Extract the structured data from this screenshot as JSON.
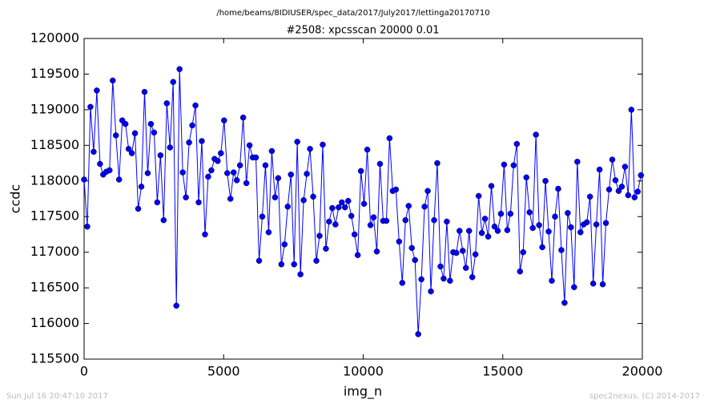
{
  "chart_data": {
    "type": "line",
    "suptitle": "/home/beams/8IDIUSER/spec_data/2017/July2017/lettinga20170710",
    "title": "#2508: xpcsscan 20000 0.01",
    "x_label": "img_n",
    "y_label": "ccdc",
    "footer_left": "Sun Jul 16 20:47:10 2017",
    "footer_right": "spec2nexus, (C) 2014-2017",
    "xlim": [
      0,
      20000
    ],
    "xticks": [
      0,
      5000,
      10000,
      15000,
      20000
    ],
    "ylim": [
      115500,
      120000
    ],
    "yticks": [
      115500,
      116000,
      116500,
      117000,
      117500,
      118000,
      118500,
      119000,
      119500,
      120000
    ],
    "x": [
      0,
      114,
      228,
      342,
      456,
      570,
      684,
      798,
      912,
      1026,
      1140,
      1254,
      1368,
      1482,
      1596,
      1710,
      1824,
      1938,
      2052,
      2166,
      2280,
      2394,
      2508,
      2622,
      2736,
      2850,
      2964,
      3078,
      3192,
      3306,
      3420,
      3534,
      3648,
      3762,
      3876,
      3990,
      4104,
      4218,
      4332,
      4446,
      4560,
      4674,
      4788,
      4902,
      5016,
      5130,
      5244,
      5358,
      5472,
      5586,
      5700,
      5814,
      5928,
      6042,
      6156,
      6270,
      6384,
      6498,
      6612,
      6726,
      6840,
      6954,
      7068,
      7182,
      7296,
      7410,
      7524,
      7638,
      7752,
      7866,
      7980,
      8094,
      8208,
      8322,
      8436,
      8550,
      8664,
      8778,
      8892,
      9006,
      9120,
      9234,
      9348,
      9462,
      9576,
      9690,
      9804,
      9918,
      10032,
      10146,
      10260,
      10374,
      10488,
      10602,
      10716,
      10830,
      10944,
      11058,
      11172,
      11286,
      11400,
      11514,
      11628,
      11742,
      11856,
      11970,
      12084,
      12198,
      12312,
      12426,
      12540,
      12654,
      12768,
      12882,
      12996,
      13110,
      13224,
      13338,
      13452,
      13566,
      13680,
      13794,
      13908,
      14022,
      14136,
      14250,
      14364,
      14478,
      14592,
      14706,
      14820,
      14934,
      15048,
      15162,
      15276,
      15390,
      15504,
      15618,
      15732,
      15846,
      15960,
      16074,
      16188,
      16302,
      16416,
      16530,
      16644,
      16758,
      16872,
      16986,
      17100,
      17214,
      17328,
      17442,
      17556,
      17670,
      17784,
      17898,
      18012,
      18126,
      18240,
      18354,
      18468,
      18582,
      18696,
      18810,
      18924,
      19038,
      19152,
      19266,
      19380,
      19494,
      19608,
      19722,
      19836,
      19950
    ],
    "series": [
      {
        "color": "#0000ff",
        "values": [
          118020,
          117360,
          119040,
          118410,
          119270,
          118240,
          118090,
          118130,
          118150,
          119410,
          118640,
          118020,
          118850,
          118800,
          118450,
          118390,
          118670,
          117610,
          117920,
          119250,
          118110,
          118800,
          118680,
          117700,
          118360,
          117450,
          119090,
          118470,
          119390,
          116250,
          119570,
          118120,
          117770,
          118540,
          118780,
          119060,
          117700,
          118560,
          117250,
          118060,
          118150,
          118310,
          118280,
          118390,
          118850,
          118110,
          117750,
          118120,
          118010,
          118220,
          118890,
          117970,
          118500,
          118330,
          118330,
          116880,
          117500,
          118220,
          117280,
          118420,
          117770,
          118040,
          116830,
          117110,
          117640,
          118090,
          116830,
          118550,
          116690,
          117730,
          118100,
          118450,
          117780,
          116880,
          117230,
          118510,
          117050,
          117430,
          117620,
          117390,
          117630,
          117700,
          117630,
          117720,
          117510,
          117250,
          116960,
          118140,
          117680,
          118440,
          117380,
          117490,
          117010,
          118240,
          117440,
          117440,
          118600,
          117860,
          117880,
          117150,
          116570,
          117450,
          117650,
          117060,
          116890,
          115850,
          116620,
          117640,
          117860,
          116450,
          117450,
          118250,
          116800,
          116630,
          117430,
          116600,
          117000,
          116990,
          117300,
          117020,
          116780,
          117300,
          116650,
          116970,
          117790,
          117270,
          117470,
          117220,
          117930,
          117360,
          117300,
          117540,
          118230,
          117310,
          117540,
          118220,
          118520,
          116730,
          117000,
          118050,
          117560,
          117340,
          118650,
          117380,
          117070,
          118000,
          117290,
          116600,
          117500,
          117890,
          117030,
          116290,
          117550,
          117350,
          116510,
          118270,
          117280,
          117390,
          117420,
          117780,
          116560,
          117390,
          118160,
          116550,
          117410,
          117880,
          118300,
          118010,
          117860,
          117920,
          118200,
          117800,
          119000,
          117770,
          117850,
          118080
        ]
      }
    ]
  }
}
